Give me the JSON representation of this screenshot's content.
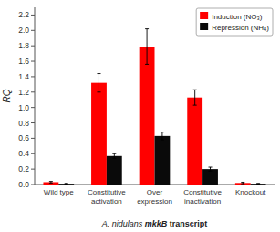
{
  "chart_data": {
    "type": "bar",
    "categories": [
      "Wild type",
      "Constitutive\nactivation",
      "Over\nexpression",
      "Constitutive\ninactivation",
      "Knockout"
    ],
    "series": [
      {
        "name": "Induction (NO₃)",
        "color": "#FF0000",
        "values": [
          0.03,
          1.32,
          1.79,
          1.13,
          0.02
        ],
        "errors": [
          0.01,
          0.12,
          0.23,
          0.1,
          0.01
        ]
      },
      {
        "name": "Repression (NH₄)",
        "color": "#0a0a0a",
        "values": [
          0.01,
          0.37,
          0.63,
          0.2,
          0.01
        ],
        "errors": [
          0.005,
          0.03,
          0.05,
          0.025,
          0.005
        ]
      }
    ],
    "x_label": "A. nidulans mkkB transcript",
    "y_label": "RQ",
    "ylim": [
      0,
      2.3
    ],
    "yticks": [
      {
        "value": 0,
        "label": "0.0"
      },
      0.2,
      0.4,
      0.6,
      0.8,
      {
        "value": 1,
        "label": "1.0"
      },
      1.2,
      1.4,
      1.6,
      1.8,
      {
        "value": 2,
        "label": "2.0"
      },
      2.2
    ],
    "grid": false,
    "legend": "upper right"
  }
}
